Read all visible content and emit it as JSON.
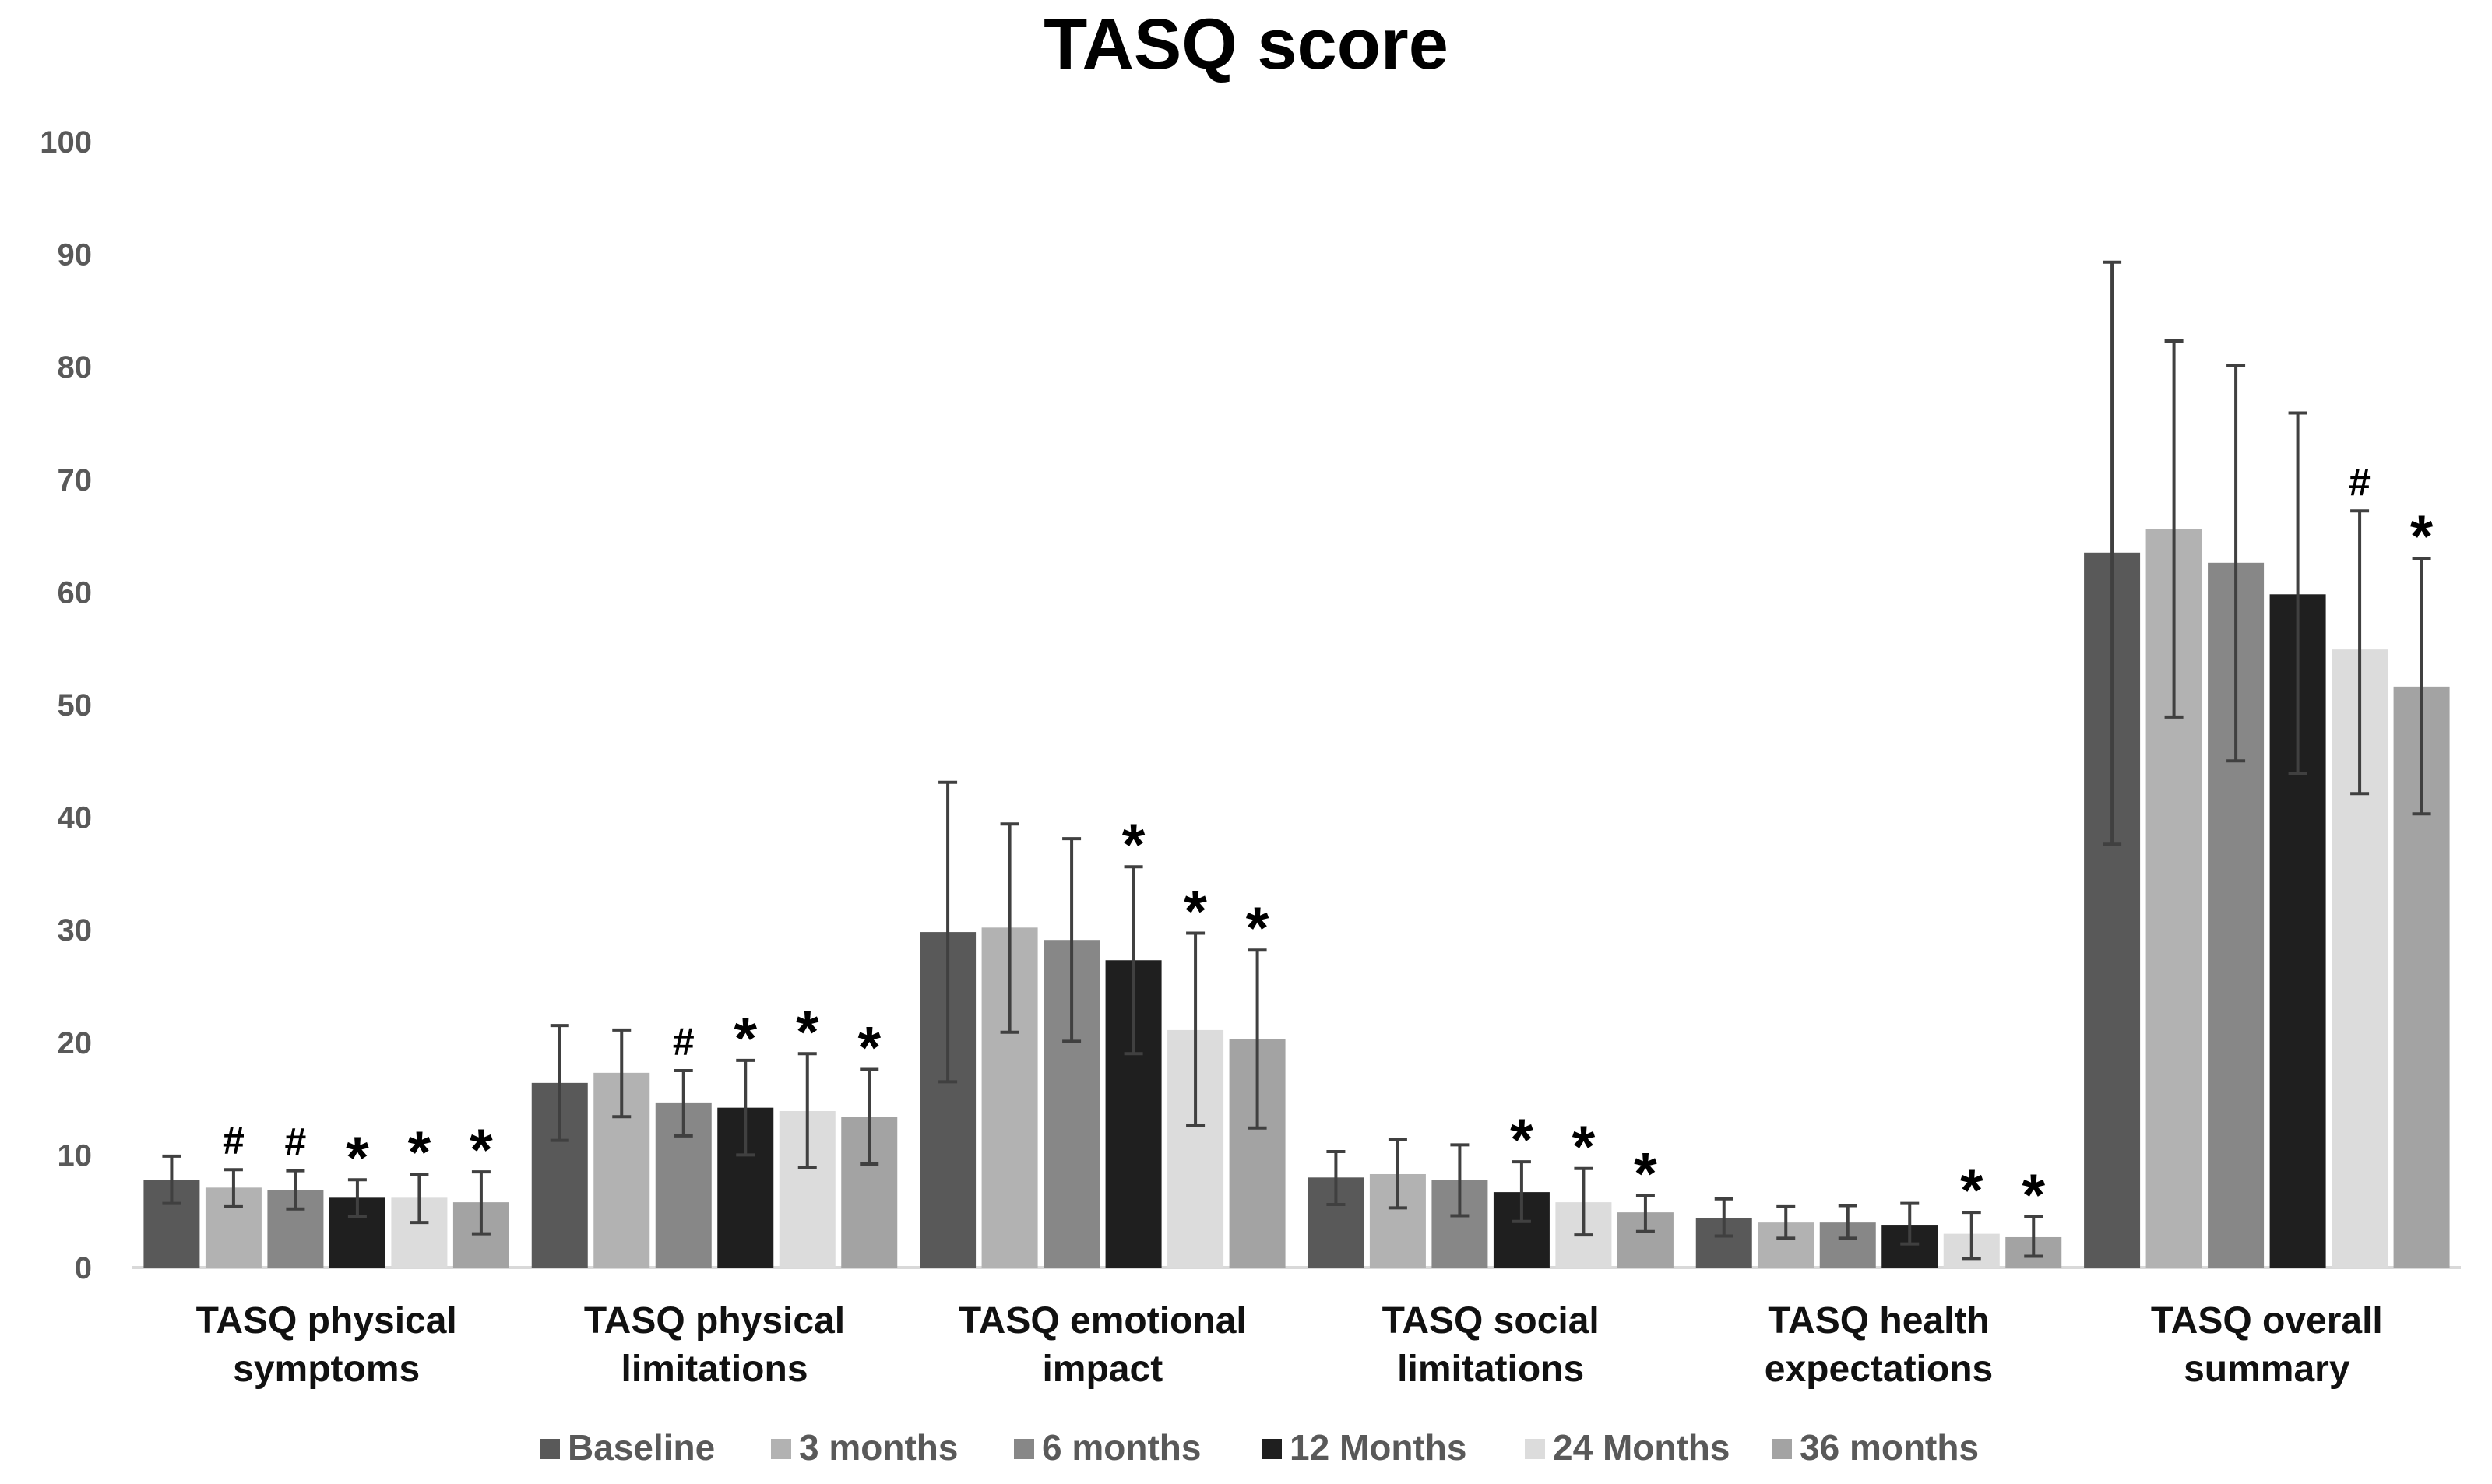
{
  "chart_data": {
    "type": "bar",
    "title": "TASQ score",
    "xlabel": "",
    "ylabel": "",
    "ylim": [
      0,
      100
    ],
    "yticks": [
      "0",
      "10",
      "20",
      "30",
      "40",
      "50",
      "60",
      "70",
      "80",
      "90",
      "100"
    ],
    "grid": false,
    "legend_position": "bottom",
    "categories": [
      [
        "TASQ physical",
        "symptoms"
      ],
      [
        "TASQ physical",
        "limitations"
      ],
      [
        "TASQ emotional",
        "impact"
      ],
      [
        "TASQ social",
        "limitations"
      ],
      [
        "TASQ health",
        "expectations"
      ],
      [
        "TASQ overall",
        "summary"
      ]
    ],
    "series": [
      {
        "name": "Baseline",
        "color": "#595959",
        "values": [
          7.8,
          16.4,
          29.8,
          8.0,
          4.4,
          63.5
        ],
        "err_low": [
          5.7,
          11.3,
          16.5,
          5.6,
          2.8,
          37.6
        ],
        "err_high": [
          9.9,
          21.5,
          43.1,
          10.3,
          6.1,
          89.3
        ],
        "markers": [
          "",
          "",
          "",
          "",
          "",
          ""
        ]
      },
      {
        "name": "3 months",
        "color": "#b2b2b2",
        "values": [
          7.1,
          17.3,
          30.2,
          8.3,
          4.0,
          65.6
        ],
        "err_low": [
          5.4,
          13.4,
          20.9,
          5.3,
          2.6,
          48.9
        ],
        "err_high": [
          8.7,
          21.1,
          39.4,
          11.4,
          5.4,
          82.3
        ],
        "markers": [
          "#",
          "",
          "",
          "",
          "",
          ""
        ]
      },
      {
        "name": "6 months",
        "color": "#878787",
        "values": [
          6.9,
          14.6,
          29.1,
          7.8,
          4.0,
          62.6
        ],
        "err_low": [
          5.2,
          11.7,
          20.1,
          4.6,
          2.6,
          45.0
        ],
        "err_high": [
          8.6,
          17.5,
          38.1,
          10.9,
          5.5,
          80.1
        ],
        "markers": [
          "#",
          "#",
          "",
          "",
          "",
          ""
        ]
      },
      {
        "name": "12 Months",
        "color": "#1f1f1f",
        "values": [
          6.2,
          14.2,
          27.3,
          6.7,
          3.8,
          59.8
        ],
        "err_low": [
          4.5,
          10.0,
          19.0,
          4.1,
          2.1,
          43.9
        ],
        "err_high": [
          7.8,
          18.4,
          35.6,
          9.4,
          5.7,
          75.9
        ],
        "markers": [
          "*",
          "*",
          "*",
          "*",
          "",
          ""
        ]
      },
      {
        "name": "24 Months",
        "color": "#dcdcdc",
        "values": [
          6.2,
          13.9,
          21.1,
          5.8,
          3.0,
          54.9
        ],
        "err_low": [
          4.0,
          8.9,
          12.6,
          2.9,
          0.8,
          42.1
        ],
        "err_high": [
          8.3,
          19.0,
          29.7,
          8.8,
          4.9,
          67.2
        ],
        "markers": [
          "*",
          "*",
          "*",
          "*",
          "*",
          "#"
        ]
      },
      {
        "name": "36 months",
        "color": "#a3a3a3",
        "values": [
          5.8,
          13.4,
          20.3,
          4.9,
          2.7,
          51.6
        ],
        "err_low": [
          3.0,
          9.2,
          12.4,
          3.2,
          1.0,
          40.3
        ],
        "err_high": [
          8.5,
          17.6,
          28.2,
          6.4,
          4.5,
          63.0
        ],
        "markers": [
          "*",
          "*",
          "*",
          "*",
          "*",
          "*"
        ]
      }
    ]
  }
}
